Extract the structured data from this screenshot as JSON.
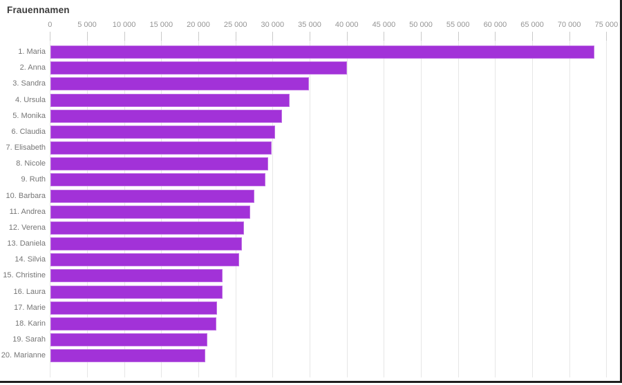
{
  "title": "Frauennamen",
  "colors": {
    "bar": "#A232D8",
    "gridline": "#E6E6E6",
    "tick": "#C9C9C9",
    "axis_label": "#949494",
    "category_label": "#757575",
    "title": "#3A3A3A",
    "background": "#FFFFFF",
    "frame_border": "#1E1E1E"
  },
  "chart_data": {
    "type": "bar",
    "orientation": "horizontal",
    "title": "Frauennamen",
    "categories": [
      "1. Maria",
      "2. Anna",
      "3. Sandra",
      "4. Ursula",
      "5. Monika",
      "6. Claudia",
      "7. Elisabeth",
      "8. Nicole",
      "9. Ruth",
      "10. Barbara",
      "11. Andrea",
      "12. Verena",
      "13. Daniela",
      "14. Silvia",
      "15. Christine",
      "16. Laura",
      "17. Marie",
      "18. Karin",
      "19. Sarah",
      "20. Marianne"
    ],
    "values": [
      73300,
      40000,
      34900,
      32300,
      31200,
      30300,
      29800,
      29400,
      29000,
      27550,
      26950,
      26100,
      25800,
      25500,
      23250,
      23200,
      22450,
      22400,
      21200,
      20900
    ],
    "x_axis": {
      "position": "top",
      "range": [
        0,
        75000
      ],
      "ticks": [
        0,
        5000,
        10000,
        15000,
        20000,
        25000,
        30000,
        35000,
        40000,
        45000,
        50000,
        55000,
        60000,
        65000,
        70000,
        75000
      ],
      "tick_labels": [
        "0",
        "5 000",
        "10 000",
        "15 000",
        "20 000",
        "25 000",
        "30 000",
        "35 000",
        "40 000",
        "45 000",
        "50 000",
        "55 000",
        "60 000",
        "65 000",
        "70 000",
        "75 000"
      ],
      "grid": true
    },
    "ylabel": "",
    "xlabel": "",
    "legend": false
  }
}
